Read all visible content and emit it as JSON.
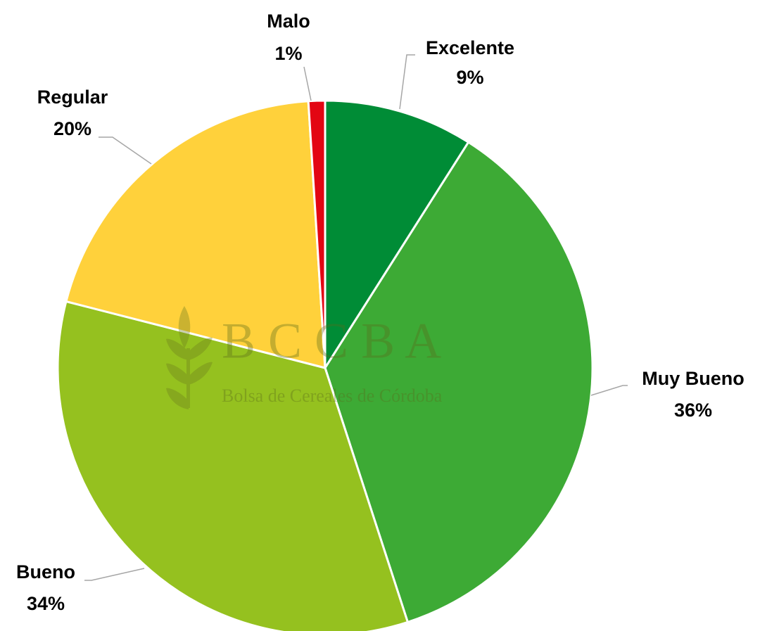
{
  "chart_data": {
    "type": "pie",
    "categories": [
      "Excelente",
      "Muy Bueno",
      "Bueno",
      "Regular",
      "Malo"
    ],
    "values": [
      9,
      36,
      34,
      20,
      1
    ],
    "value_labels": [
      "9%",
      "36%",
      "34%",
      "20%",
      "1%"
    ],
    "colors": [
      "#008c36",
      "#3daa35",
      "#95c11f",
      "#ffd13b",
      "#e30613"
    ],
    "watermark": {
      "title": "B C C B A",
      "subtitle": "Bolsa de Cereales de Córdoba"
    }
  }
}
